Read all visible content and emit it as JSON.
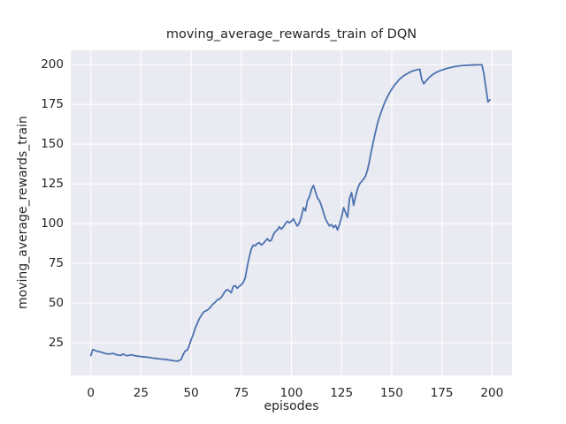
{
  "chart_data": {
    "type": "line",
    "title": "moving_average_rewards_train of DQN",
    "xlabel": "episodes",
    "ylabel": "moving_average_rewards_train",
    "x_ticks": [
      0,
      25,
      50,
      75,
      100,
      125,
      150,
      175,
      200
    ],
    "y_ticks": [
      25,
      50,
      75,
      100,
      125,
      150,
      175,
      200
    ],
    "xlim": [
      -10,
      210
    ],
    "ylim": [
      4.5,
      209
    ],
    "grid": true,
    "legend_position": "none",
    "style": {
      "line_color": "#4c72b0",
      "plot_bg": "#eaeaf2",
      "grid_color": "#ffffff",
      "text_color": "#262626",
      "line_width": 1.8,
      "grid_width": 1.1
    },
    "series": [
      {
        "name": "moving_average_rewards_train",
        "x_start": 0,
        "x_step": 1,
        "y": [
          17.0,
          20.8,
          20.3,
          19.8,
          19.5,
          19.2,
          18.8,
          18.4,
          18.1,
          17.9,
          18.1,
          18.4,
          17.9,
          17.4,
          17.2,
          17.1,
          18.0,
          17.4,
          16.9,
          17.1,
          17.5,
          17.2,
          16.9,
          16.7,
          16.5,
          16.4,
          16.2,
          16.1,
          16.0,
          15.8,
          15.6,
          15.4,
          15.3,
          15.1,
          15.0,
          14.8,
          14.7,
          14.6,
          14.4,
          14.2,
          14.0,
          13.8,
          13.6,
          13.5,
          13.8,
          14.5,
          17.5,
          19.8,
          20.3,
          23.0,
          27.0,
          30.0,
          34.0,
          37.0,
          40.0,
          42.0,
          44.0,
          45.0,
          45.5,
          46.5,
          48.0,
          49.5,
          50.5,
          52.0,
          52.5,
          53.5,
          55.5,
          57.5,
          58.5,
          57.8,
          56.5,
          60.5,
          61.0,
          59.3,
          60.5,
          61.5,
          63.0,
          66.0,
          73.0,
          79.0,
          84.0,
          86.5,
          86.0,
          87.5,
          88.0,
          86.5,
          87.5,
          89.0,
          90.5,
          89.0,
          89.5,
          93.0,
          95.0,
          96.0,
          98.0,
          96.5,
          98.0,
          100.0,
          101.5,
          100.5,
          101.5,
          103.0,
          100.5,
          98.5,
          100.5,
          104.5,
          110.0,
          108.0,
          114.5,
          117.0,
          121.5,
          124.0,
          120.0,
          116.0,
          114.5,
          111.0,
          107.0,
          103.0,
          100.5,
          98.5,
          99.5,
          97.5,
          99.0,
          96.0,
          99.5,
          104.0,
          110.0,
          107.0,
          104.0,
          116.0,
          119.5,
          111.5,
          117.0,
          122.0,
          125.0,
          126.5,
          128.0,
          130.0,
          134.0,
          140.0,
          146.5,
          152.5,
          158.0,
          163.5,
          167.5,
          171.0,
          174.5,
          177.5,
          180.0,
          182.5,
          184.5,
          186.5,
          188.0,
          189.5,
          191.0,
          192.0,
          193.0,
          193.8,
          194.5,
          195.2,
          195.8,
          196.2,
          196.6,
          196.9,
          197.1,
          190.5,
          188.0,
          189.5,
          191.0,
          192.3,
          193.3,
          194.2,
          195.0,
          195.6,
          196.1,
          196.6,
          197.0,
          197.4,
          197.8,
          198.1,
          198.4,
          198.7,
          198.9,
          199.1,
          199.3,
          199.4,
          199.5,
          199.6,
          199.7,
          199.7,
          199.8,
          199.8,
          199.9,
          199.9,
          199.9,
          199.9,
          194.0,
          185.0,
          176.5,
          178.0
        ]
      }
    ]
  }
}
